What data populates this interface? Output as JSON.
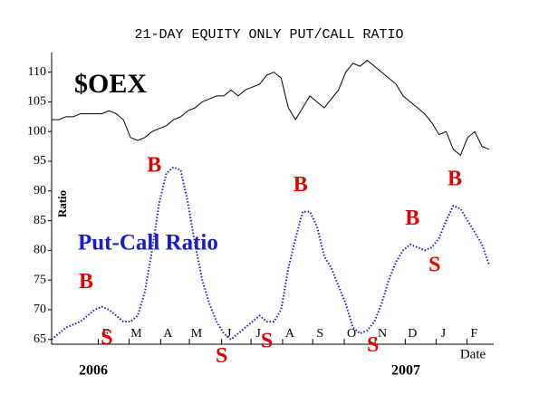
{
  "chart_data": {
    "type": "line",
    "title": "21-DAY EQUITY ONLY PUT/CALL RATIO",
    "ylabel": "Ratio",
    "xlabel": "Date",
    "year_labels": [
      "2006",
      "2007"
    ],
    "x": [
      0,
      1,
      2,
      3,
      4,
      5,
      6,
      7,
      8,
      9,
      10,
      11,
      12,
      13,
      14,
      15,
      16,
      17,
      18,
      19,
      20,
      21,
      22,
      23,
      24,
      25,
      26,
      27,
      28,
      29,
      30,
      31,
      32,
      33,
      34,
      35,
      36,
      37,
      38,
      39,
      40,
      41,
      42,
      43,
      44,
      45,
      46,
      47,
      48,
      49,
      50,
      51,
      52,
      53,
      54,
      55,
      56,
      57,
      58,
      59,
      60,
      61
    ],
    "series": [
      {
        "name": "$OEX",
        "color": "#000000",
        "style": "solid",
        "values": [
          102,
          102,
          102.5,
          102.5,
          103,
          103,
          103,
          103,
          103.5,
          103,
          102,
          99,
          98.5,
          99,
          100,
          100.5,
          101,
          102,
          102.5,
          103.5,
          104,
          105,
          105.5,
          106,
          106,
          107,
          106,
          107,
          107.5,
          108,
          109.5,
          110,
          109,
          104,
          102,
          104,
          106,
          105,
          104,
          105.5,
          107,
          110,
          111.5,
          111,
          112,
          111,
          110,
          109,
          108,
          106,
          105,
          104,
          103,
          101.5,
          99.5,
          100,
          97,
          96,
          99,
          100,
          97.5,
          97
        ]
      },
      {
        "name": "Put-Call Ratio",
        "color": "#1a1acc",
        "style": "dotted",
        "values": [
          65,
          66,
          67,
          67.5,
          68,
          69,
          70,
          70.5,
          70,
          69,
          68,
          68,
          69,
          73,
          80,
          88,
          93,
          94,
          93.5,
          88,
          81,
          75,
          71,
          68,
          66,
          65,
          66,
          67,
          68,
          69,
          68,
          68,
          70,
          77,
          82,
          86.5,
          86.5,
          84,
          79,
          77,
          74,
          71,
          67,
          66,
          66.5,
          68,
          71,
          75,
          78,
          80,
          81,
          80.5,
          80,
          80.5,
          82,
          85,
          87.5,
          87,
          85,
          83,
          81,
          77.5
        ]
      }
    ],
    "xlim": [
      0,
      61
    ],
    "xticks": [
      {
        "value": 6.5,
        "label": "F"
      },
      {
        "value": 10.8,
        "label": "M"
      },
      {
        "value": 15.2,
        "label": "A"
      },
      {
        "value": 19.2,
        "label": "M"
      },
      {
        "value": 23.7,
        "label": "J"
      },
      {
        "value": 27.8,
        "label": "J"
      },
      {
        "value": 32.2,
        "label": "A"
      },
      {
        "value": 36.4,
        "label": "S"
      },
      {
        "value": 40.8,
        "label": "O"
      },
      {
        "value": 45.1,
        "label": "N"
      },
      {
        "value": 49.3,
        "label": "D"
      },
      {
        "value": 53.6,
        "label": "J"
      },
      {
        "value": 57.9,
        "label": "F"
      }
    ],
    "ylim": [
      64.5,
      113
    ],
    "yticks": [
      65,
      70,
      75,
      80,
      85,
      90,
      95,
      100,
      105,
      110
    ],
    "annotations": [
      {
        "text": "B",
        "x": 4.8,
        "y": 74.5
      },
      {
        "text": "S",
        "x": 7.7,
        "y": 65
      },
      {
        "text": "B",
        "x": 14.3,
        "y": 94.1
      },
      {
        "text": "S",
        "x": 23.7,
        "y": 62
      },
      {
        "text": "S",
        "x": 30,
        "y": 64.5
      },
      {
        "text": "B",
        "x": 34.7,
        "y": 90.8
      },
      {
        "text": "S",
        "x": 44.8,
        "y": 63.8
      },
      {
        "text": "B",
        "x": 50.3,
        "y": 85.2
      },
      {
        "text": "S",
        "x": 53.4,
        "y": 77.3
      },
      {
        "text": "B",
        "x": 56.2,
        "y": 91.8
      }
    ]
  }
}
